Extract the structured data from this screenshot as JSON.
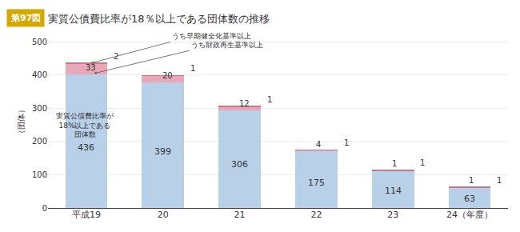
{
  "chart_data": {
    "type": "bar",
    "stacked": true,
    "fig_label": "第97図",
    "title": "実質公債費比率が18％以上である団体数の推移",
    "ylabel": "（団体）",
    "categories": [
      "平成19",
      "20",
      "21",
      "22",
      "23",
      "24（年度）"
    ],
    "series": [
      {
        "name": "実質公債費比率が\n18%以上である\n団体数",
        "color": "#b8d0e8",
        "values": [
          403,
          379,
          294,
          171,
          113,
          62
        ]
      },
      {
        "name": "うち早期健全化基準以上",
        "color": "#e8a8b8",
        "values": [
          31,
          19,
          11,
          3,
          0,
          0
        ]
      },
      {
        "name": "うち財政再生基準以上",
        "color": "#c87888",
        "values": [
          2,
          1,
          1,
          1,
          1,
          1
        ],
        "data_labels": true
      }
    ],
    "total_values": [
      436,
      399,
      306,
      175,
      114,
      63
    ],
    "early_health_values": [
      33,
      20,
      12,
      4,
      1,
      1
    ],
    "ylim": [
      0,
      520
    ],
    "yticks": [
      0,
      100,
      200,
      300,
      400,
      500
    ],
    "grid": true
  }
}
